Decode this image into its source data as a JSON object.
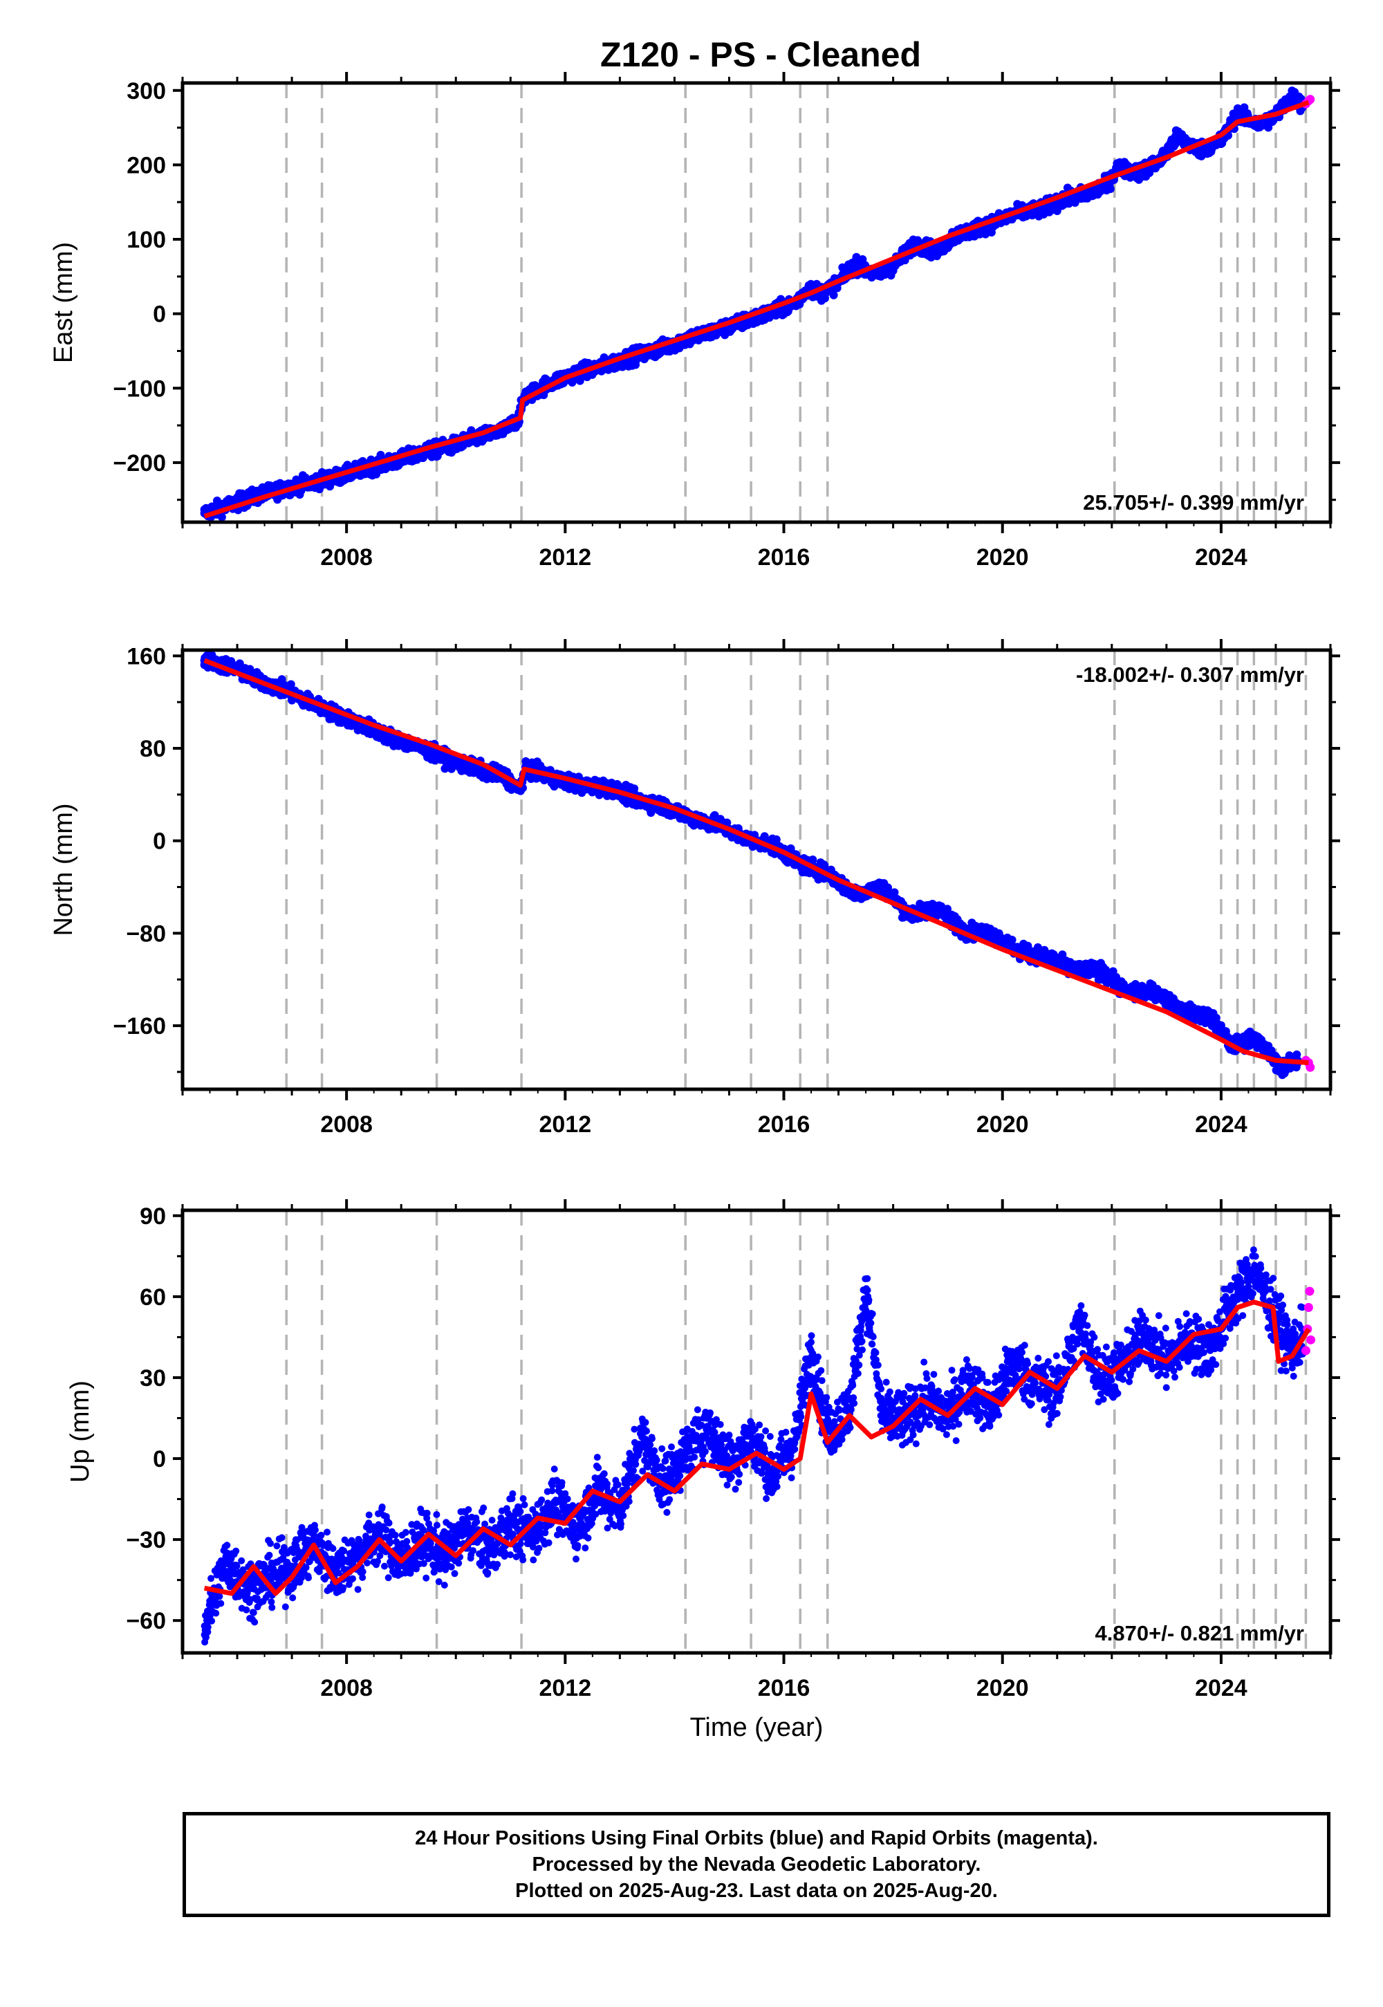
{
  "title": "Z120  - PS - Cleaned",
  "xlabel": "Time (year)",
  "footer": {
    "line1": "24 Hour Positions Using Final Orbits (blue) and Rapid Orbits (magenta).",
    "line2": "Processed by the Nevada Geodetic Laboratory.",
    "line3": "Plotted on 2025-Aug-23. Last data on 2025-Aug-20."
  },
  "colors": {
    "final": "#0000ff",
    "rapid": "#ff00ff",
    "model": "#ff0000",
    "breaks": "#b4b4b4"
  },
  "chart_data": [
    {
      "type": "scatter",
      "panel": "east",
      "ylabel": "East (mm)",
      "xlim": [
        2005.0,
        2026.0
      ],
      "ylim": [
        -280,
        310
      ],
      "yticks": [
        -200,
        -100,
        0,
        100,
        200,
        300
      ],
      "xticks": [
        2008,
        2012,
        2016,
        2020,
        2024
      ],
      "rate_label": "25.705+/- 0.399 mm/yr",
      "rate_position": "bottom-right",
      "breaks": [
        2006.9,
        2007.55,
        2009.65,
        2011.2,
        2014.2,
        2015.4,
        2016.3,
        2016.8,
        2022.05,
        2024.0,
        2024.3,
        2024.6,
        2025.0,
        2025.55
      ],
      "series": [
        {
          "name": "Final Orbits",
          "color": "#0000ff",
          "x": [
            2005.4,
            2005.9,
            2006.4,
            2006.9,
            2007.4,
            2007.9,
            2008.4,
            2008.9,
            2009.4,
            2009.9,
            2010.4,
            2010.9,
            2011.15,
            2011.25,
            2011.7,
            2012.2,
            2012.7,
            2013.2,
            2013.7,
            2014.2,
            2014.7,
            2015.2,
            2015.7,
            2016.2,
            2016.45,
            2016.7,
            2017.0,
            2017.3,
            2017.7,
            2018.0,
            2018.4,
            2018.8,
            2019.1,
            2019.5,
            2019.9,
            2020.3,
            2020.7,
            2021.1,
            2021.5,
            2021.9,
            2022.1,
            2022.5,
            2022.9,
            2023.2,
            2023.6,
            2024.0,
            2024.3,
            2024.7,
            2025.0,
            2025.3,
            2025.5
          ],
          "y": [
            -268,
            -256,
            -244,
            -234,
            -226,
            -218,
            -206,
            -198,
            -186,
            -178,
            -166,
            -156,
            -140,
            -112,
            -94,
            -80,
            -70,
            -58,
            -48,
            -34,
            -24,
            -12,
            0,
            14,
            34,
            28,
            42,
            66,
            52,
            64,
            94,
            84,
            104,
            114,
            124,
            136,
            140,
            154,
            160,
            172,
            196,
            190,
            206,
            238,
            220,
            232,
            268,
            254,
            266,
            292,
            280
          ]
        },
        {
          "name": "Rapid Orbits",
          "color": "#ff00ff",
          "x": [
            2025.55,
            2025.6,
            2025.63
          ],
          "y": [
            282,
            286,
            288
          ]
        }
      ],
      "model": {
        "x": [
          2005.4,
          2006.5,
          2007.5,
          2008.5,
          2009.5,
          2010.5,
          2011.18,
          2011.22,
          2012.0,
          2013.0,
          2014.0,
          2015.0,
          2016.0,
          2016.5,
          2017.0,
          2018.0,
          2019.0,
          2020.0,
          2021.0,
          2022.0,
          2023.0,
          2024.0,
          2024.3,
          2025.0,
          2025.6
        ],
        "y": [
          -272,
          -246,
          -224,
          -202,
          -180,
          -160,
          -140,
          -116,
          -86,
          -60,
          -36,
          -12,
          14,
          28,
          44,
          74,
          104,
          130,
          156,
          184,
          210,
          240,
          258,
          268,
          284
        ]
      }
    },
    {
      "type": "scatter",
      "panel": "north",
      "ylabel": "North (mm)",
      "xlim": [
        2005.0,
        2026.0
      ],
      "ylim": [
        -215,
        165
      ],
      "yticks": [
        -160,
        -80,
        0,
        80,
        160
      ],
      "xticks": [
        2008,
        2012,
        2016,
        2020,
        2024
      ],
      "rate_label": "-18.002+/- 0.307 mm/yr",
      "rate_position": "top-right",
      "breaks": [
        2006.9,
        2007.55,
        2009.65,
        2011.2,
        2014.2,
        2015.4,
        2016.3,
        2016.8,
        2022.05,
        2024.0,
        2024.3,
        2024.6,
        2025.0,
        2025.55
      ],
      "series": [
        {
          "name": "Final Orbits",
          "color": "#0000ff",
          "x": [
            2005.4,
            2005.9,
            2006.4,
            2006.9,
            2007.4,
            2007.9,
            2008.4,
            2008.9,
            2009.4,
            2009.9,
            2010.4,
            2010.9,
            2011.15,
            2011.3,
            2011.8,
            2012.3,
            2012.8,
            2013.3,
            2013.8,
            2014.3,
            2014.8,
            2015.3,
            2015.8,
            2016.3,
            2016.8,
            2017.3,
            2017.8,
            2018.3,
            2018.8,
            2019.3,
            2019.8,
            2020.3,
            2020.8,
            2021.3,
            2021.8,
            2022.3,
            2022.8,
            2023.3,
            2023.8,
            2024.2,
            2024.6,
            2024.9,
            2025.1,
            2025.4
          ],
          "y": [
            156,
            150,
            138,
            130,
            118,
            108,
            98,
            88,
            80,
            70,
            62,
            56,
            44,
            62,
            54,
            48,
            46,
            36,
            30,
            20,
            14,
            2,
            -4,
            -20,
            -28,
            -46,
            -40,
            -64,
            -58,
            -78,
            -80,
            -96,
            -100,
            -112,
            -112,
            -132,
            -130,
            -148,
            -152,
            -178,
            -170,
            -186,
            -196,
            -190
          ]
        },
        {
          "name": "Rapid Orbits",
          "color": "#ff00ff",
          "x": [
            2025.55,
            2025.6,
            2025.63
          ],
          "y": [
            -190,
            -192,
            -196
          ]
        }
      ],
      "model": {
        "x": [
          2005.4,
          2006.5,
          2007.5,
          2008.5,
          2009.5,
          2010.5,
          2011.18,
          2011.25,
          2012.0,
          2013.0,
          2014.0,
          2015.0,
          2016.0,
          2017.0,
          2018.0,
          2019.0,
          2020.0,
          2021.0,
          2022.0,
          2023.0,
          2024.0,
          2024.4,
          2025.0,
          2025.6
        ],
        "y": [
          156,
          136,
          118,
          100,
          84,
          66,
          48,
          62,
          54,
          42,
          28,
          10,
          -10,
          -34,
          -54,
          -74,
          -94,
          -112,
          -130,
          -148,
          -172,
          -182,
          -190,
          -192
        ]
      }
    },
    {
      "type": "scatter",
      "panel": "up",
      "ylabel": "Up (mm)",
      "xlim": [
        2005.0,
        2026.0
      ],
      "ylim": [
        -72,
        92
      ],
      "yticks": [
        -60,
        -30,
        0,
        30,
        60,
        90
      ],
      "xticks": [
        2008,
        2012,
        2016,
        2020,
        2024
      ],
      "rate_label": "4.870+/- 0.821 mm/yr",
      "rate_position": "bottom-right",
      "breaks": [
        2006.9,
        2007.55,
        2009.65,
        2011.2,
        2014.2,
        2015.4,
        2016.3,
        2016.8,
        2022.05,
        2024.0,
        2024.3,
        2024.6,
        2025.0,
        2025.55
      ],
      "series": [
        {
          "name": "Final Orbits",
          "color": "#0000ff",
          "x": [
            2005.4,
            2005.8,
            2006.2,
            2006.6,
            2007.0,
            2007.4,
            2007.8,
            2008.2,
            2008.6,
            2009.0,
            2009.4,
            2009.8,
            2010.2,
            2010.6,
            2011.0,
            2011.4,
            2011.8,
            2012.2,
            2012.6,
            2013.0,
            2013.4,
            2013.8,
            2014.2,
            2014.6,
            2015.0,
            2015.4,
            2015.8,
            2016.2,
            2016.5,
            2016.8,
            2017.2,
            2017.5,
            2017.8,
            2018.2,
            2018.6,
            2019.0,
            2019.4,
            2019.8,
            2020.2,
            2020.6,
            2021.0,
            2021.4,
            2021.8,
            2022.2,
            2022.6,
            2023.0,
            2023.4,
            2023.8,
            2024.2,
            2024.6,
            2025.0,
            2025.3,
            2025.5
          ],
          "y": [
            -62,
            -38,
            -48,
            -44,
            -40,
            -32,
            -42,
            -36,
            -28,
            -38,
            -30,
            -36,
            -26,
            -34,
            -24,
            -28,
            -16,
            -26,
            -12,
            -18,
            8,
            -10,
            2,
            12,
            -2,
            8,
            -6,
            6,
            40,
            10,
            18,
            62,
            16,
            14,
            22,
            16,
            28,
            18,
            36,
            28,
            24,
            50,
            30,
            34,
            46,
            36,
            44,
            40,
            58,
            70,
            52,
            40,
            46
          ]
        },
        {
          "name": "Rapid Orbits",
          "color": "#ff00ff",
          "x": [
            2025.55,
            2025.58,
            2025.6,
            2025.62,
            2025.64
          ],
          "y": [
            40,
            48,
            56,
            62,
            44
          ]
        }
      ],
      "model": {
        "x": [
          2005.4,
          2005.9,
          2006.3,
          2006.7,
          2007.0,
          2007.4,
          2007.8,
          2008.2,
          2008.6,
          2009.0,
          2009.5,
          2010.0,
          2010.5,
          2011.0,
          2011.5,
          2012.0,
          2012.5,
          2013.0,
          2013.5,
          2014.0,
          2014.5,
          2015.0,
          2015.5,
          2016.0,
          2016.3,
          2016.5,
          2016.8,
          2017.2,
          2017.6,
          2018.0,
          2018.5,
          2019.0,
          2019.5,
          2020.0,
          2020.5,
          2021.0,
          2021.5,
          2022.0,
          2022.5,
          2023.0,
          2023.5,
          2024.0,
          2024.3,
          2024.6,
          2024.95,
          2025.05,
          2025.3,
          2025.6
        ],
        "y": [
          -48,
          -50,
          -40,
          -50,
          -44,
          -32,
          -46,
          -40,
          -30,
          -38,
          -28,
          -36,
          -26,
          -32,
          -22,
          -24,
          -12,
          -16,
          -6,
          -12,
          -2,
          -4,
          2,
          -4,
          0,
          24,
          6,
          16,
          8,
          12,
          22,
          16,
          26,
          20,
          32,
          26,
          38,
          32,
          40,
          36,
          46,
          48,
          56,
          58,
          56,
          36,
          38,
          48
        ]
      }
    }
  ]
}
